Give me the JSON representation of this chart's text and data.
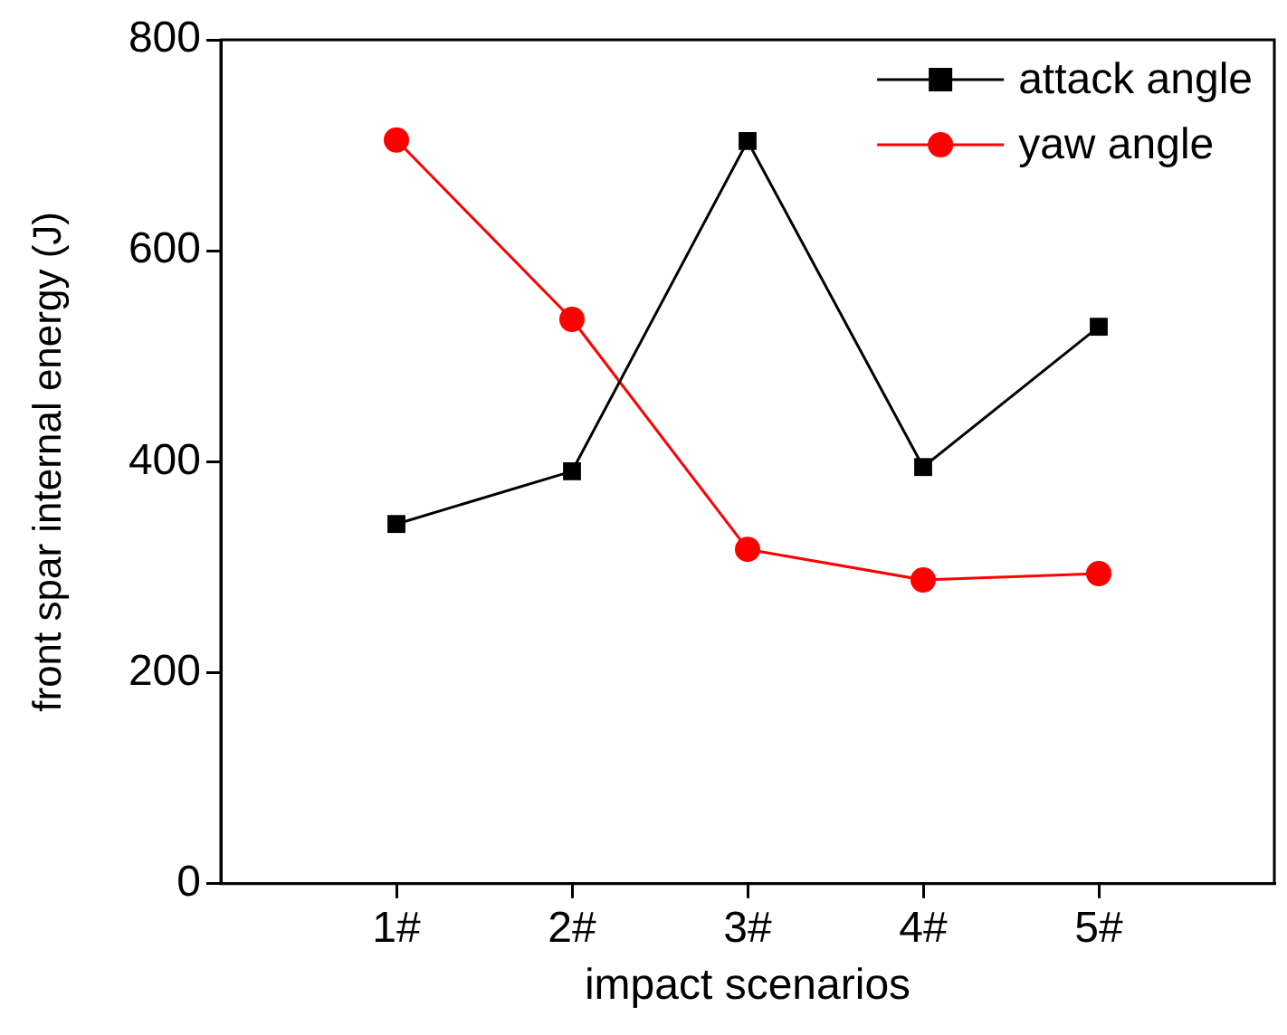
{
  "chart_data": {
    "type": "line",
    "xlabel": "impact scenarios",
    "ylabel": "front spar internal energy (J)",
    "categories": [
      "1#",
      "2#",
      "3#",
      "4#",
      "5#"
    ],
    "series": [
      {
        "name": "attack angle",
        "color": "#000000",
        "marker": "square",
        "values": [
          341,
          391,
          704,
          395,
          528
        ]
      },
      {
        "name": "yaw angle",
        "color": "#ff0000",
        "marker": "circle",
        "values": [
          705,
          535,
          317,
          288,
          294
        ]
      }
    ],
    "ylim": [
      0,
      800
    ],
    "yticks": [
      0,
      200,
      400,
      600,
      800
    ],
    "grid": false,
    "legend": "top right",
    "line_style": "solid"
  }
}
